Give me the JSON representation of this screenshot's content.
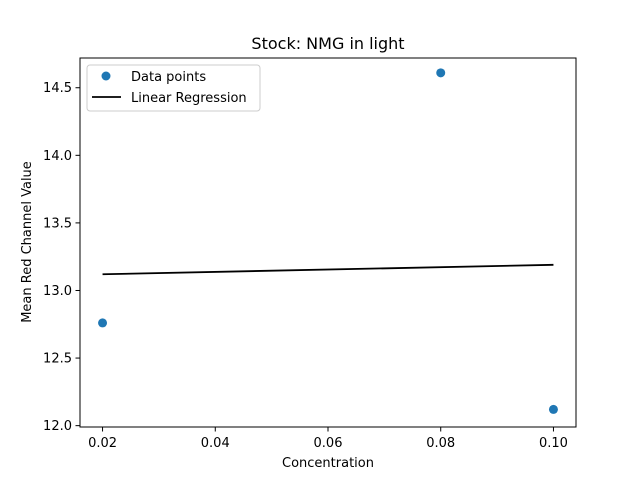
{
  "chart_data": {
    "type": "scatter",
    "title": "Stock: NMG in light",
    "xlabel": "Concentration",
    "ylabel": "Mean Red Channel Value",
    "xlim": [
      0.016,
      0.104
    ],
    "ylim": [
      11.99,
      14.72
    ],
    "xticks": [
      0.02,
      0.04,
      0.06,
      0.08,
      0.1
    ],
    "xtick_labels": [
      "0.02",
      "0.04",
      "0.06",
      "0.08",
      "0.10"
    ],
    "yticks": [
      12.0,
      12.5,
      13.0,
      13.5,
      14.0,
      14.5
    ],
    "ytick_labels": [
      "12.0",
      "12.5",
      "13.0",
      "13.5",
      "14.0",
      "14.5"
    ],
    "grid": false,
    "legend_position": "top-left",
    "series": [
      {
        "name": "Data points",
        "kind": "scatter",
        "color": "#1f77b4",
        "points": [
          {
            "x": 0.02,
            "y": 12.76
          },
          {
            "x": 0.08,
            "y": 14.61
          },
          {
            "x": 0.1,
            "y": 12.12
          }
        ]
      },
      {
        "name": "Linear Regression",
        "kind": "line",
        "color": "#000000",
        "points": [
          {
            "x": 0.02,
            "y": 13.12
          },
          {
            "x": 0.1,
            "y": 13.19
          }
        ]
      }
    ]
  }
}
